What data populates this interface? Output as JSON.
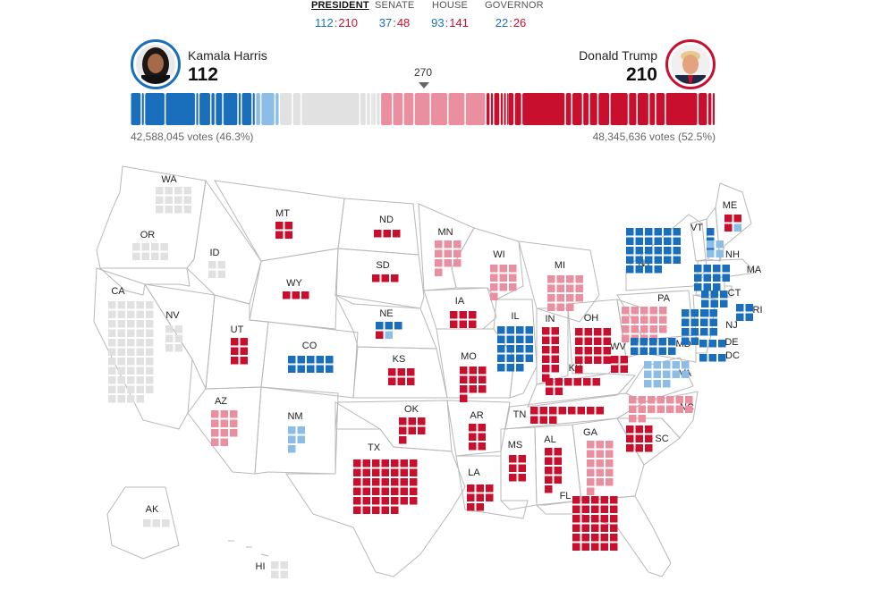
{
  "tabs": [
    {
      "label": "PRESIDENT",
      "dem": "112",
      "rep": "210",
      "active": true
    },
    {
      "label": "SENATE",
      "dem": "37",
      "rep": "48",
      "active": false
    },
    {
      "label": "HOUSE",
      "dem": "93",
      "rep": "141",
      "active": false
    },
    {
      "label": "GOVERNOR",
      "dem": "22",
      "rep": "26",
      "active": false
    }
  ],
  "colors": {
    "dem_called": "#1a6fbd",
    "dem_leading": "#8bbde6",
    "rep_called": "#c8102e",
    "rep_leading": "#ea8fa0",
    "uncalled": "#e1e1e1"
  },
  "candidates": {
    "dem": {
      "name": "Kamala Harris",
      "ev": "112",
      "votes": "42,588,045 votes (46.3%)"
    },
    "rep": {
      "name": "Donald Trump",
      "ev": "210",
      "votes": "48,345,636 votes (52.5%)"
    }
  },
  "threshold": "270",
  "states": [
    {
      "abbr": "WA",
      "ev": 12,
      "status": "u"
    },
    {
      "abbr": "OR",
      "ev": 8,
      "status": "u"
    },
    {
      "abbr": "CA",
      "ev": 54,
      "status": "u"
    },
    {
      "abbr": "NV",
      "ev": 6,
      "status": "u"
    },
    {
      "abbr": "ID",
      "ev": 4,
      "status": "u"
    },
    {
      "abbr": "MT",
      "ev": 4,
      "status": "R"
    },
    {
      "abbr": "WY",
      "ev": 3,
      "status": "R"
    },
    {
      "abbr": "UT",
      "ev": 6,
      "status": "R"
    },
    {
      "abbr": "AZ",
      "ev": 11,
      "status": "r"
    },
    {
      "abbr": "CO",
      "ev": 10,
      "status": "D"
    },
    {
      "abbr": "NM",
      "ev": 5,
      "status": "d"
    },
    {
      "abbr": "ND",
      "ev": 3,
      "status": "R"
    },
    {
      "abbr": "SD",
      "ev": 3,
      "status": "R"
    },
    {
      "abbr": "NE",
      "ev": 5,
      "status": "split",
      "split": [
        3,
        1,
        1
      ]
    },
    {
      "abbr": "KS",
      "ev": 6,
      "status": "R"
    },
    {
      "abbr": "OK",
      "ev": 7,
      "status": "R"
    },
    {
      "abbr": "TX",
      "ev": 40,
      "status": "R"
    },
    {
      "abbr": "MN",
      "ev": 10,
      "status": "r"
    },
    {
      "abbr": "IA",
      "ev": 6,
      "status": "R"
    },
    {
      "abbr": "MO",
      "ev": 10,
      "status": "R"
    },
    {
      "abbr": "AR",
      "ev": 6,
      "status": "R"
    },
    {
      "abbr": "LA",
      "ev": 8,
      "status": "R"
    },
    {
      "abbr": "WI",
      "ev": 10,
      "status": "r"
    },
    {
      "abbr": "IL",
      "ev": 19,
      "status": "D"
    },
    {
      "abbr": "MI",
      "ev": 15,
      "status": "r"
    },
    {
      "abbr": "IN",
      "ev": 11,
      "status": "R"
    },
    {
      "abbr": "OH",
      "ev": 17,
      "status": "R"
    },
    {
      "abbr": "KY",
      "ev": 8,
      "status": "R"
    },
    {
      "abbr": "TN",
      "ev": 11,
      "status": "R"
    },
    {
      "abbr": "MS",
      "ev": 6,
      "status": "R"
    },
    {
      "abbr": "AL",
      "ev": 9,
      "status": "R"
    },
    {
      "abbr": "GA",
      "ev": 16,
      "status": "r"
    },
    {
      "abbr": "FL",
      "ev": 30,
      "status": "R"
    },
    {
      "abbr": "SC",
      "ev": 9,
      "status": "R"
    },
    {
      "abbr": "NC",
      "ev": 16,
      "status": "r"
    },
    {
      "abbr": "VA",
      "ev": 13,
      "status": "d"
    },
    {
      "abbr": "WV",
      "ev": 4,
      "status": "R"
    },
    {
      "abbr": "PA",
      "ev": 19,
      "status": "r"
    },
    {
      "abbr": "NY",
      "ev": 28,
      "status": "D"
    },
    {
      "abbr": "VT",
      "ev": 3,
      "status": "D"
    },
    {
      "abbr": "NH",
      "ev": 4,
      "status": "d"
    },
    {
      "abbr": "ME",
      "ev": 4,
      "status": "split",
      "split": [
        0,
        3,
        1
      ]
    },
    {
      "abbr": "MA",
      "ev": 11,
      "status": "D"
    },
    {
      "abbr": "RI",
      "ev": 4,
      "status": "D"
    },
    {
      "abbr": "CT",
      "ev": 7,
      "status": "D"
    },
    {
      "abbr": "NJ",
      "ev": 14,
      "status": "D"
    },
    {
      "abbr": "DE",
      "ev": 3,
      "status": "D"
    },
    {
      "abbr": "MD",
      "ev": 10,
      "status": "D"
    },
    {
      "abbr": "DC",
      "ev": 3,
      "status": "D"
    },
    {
      "abbr": "AK",
      "ev": 3,
      "status": "u"
    },
    {
      "abbr": "HI",
      "ev": 4,
      "status": "u"
    }
  ]
}
